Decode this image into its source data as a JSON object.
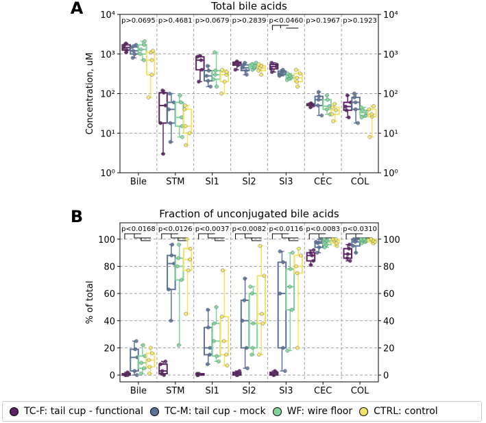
{
  "legend": [
    {
      "key": "TC-F",
      "label": "TC-F: tail cup - functional",
      "color": "#5b2164"
    },
    {
      "key": "TC-M",
      "label": "TC-M: tail cup - mock",
      "color": "#5b7397"
    },
    {
      "key": "WF",
      "label": "WF: wire floor",
      "color": "#7fd49a"
    },
    {
      "key": "CTRL",
      "label": "CTRL: control",
      "color": "#f2e368"
    }
  ],
  "chart_data": [
    {
      "panel": "A",
      "type": "box",
      "title": "Total bile acids",
      "ylabel": "Concentration, uM",
      "yscale": "log",
      "ylim": [
        1,
        10000
      ],
      "ytick_labels": [
        "10⁰",
        "10¹",
        "10²",
        "10³",
        "10⁴"
      ],
      "grid": true,
      "categories": [
        "Bile",
        "STM",
        "SI1",
        "SI2",
        "SI3",
        "CEC",
        "COL"
      ],
      "pvalues": [
        "p>0.0695",
        "p>0.4681",
        "p>0.0679",
        "p>0.2839",
        "p<0.0460",
        "p>0.1967",
        "p>0.1923"
      ],
      "series": [
        {
          "name": "TC-F",
          "boxes": [
            {
              "min": 1100,
              "q1": 1250,
              "median": 1450,
              "q3": 1700,
              "max": 1850
            },
            {
              "min": 3,
              "q1": 18,
              "median": 50,
              "q3": 105,
              "max": 120
            },
            {
              "min": 200,
              "q1": 400,
              "median": 700,
              "q3": 850,
              "max": 900
            },
            {
              "min": 400,
              "q1": 520,
              "median": 580,
              "q3": 620,
              "max": 650
            },
            {
              "min": 350,
              "q1": 420,
              "median": 480,
              "q3": 540,
              "max": 600
            },
            {
              "min": 45,
              "q1": 50,
              "median": 53,
              "q3": 55,
              "max": 57
            },
            {
              "min": 25,
              "q1": 38,
              "median": 47,
              "q3": 60,
              "max": 90
            }
          ]
        },
        {
          "name": "TC-M",
          "boxes": [
            {
              "min": 800,
              "q1": 1000,
              "median": 1200,
              "q3": 1500,
              "max": 1700
            },
            {
              "min": 6,
              "q1": 18,
              "median": 40,
              "q3": 60,
              "max": 100
            },
            {
              "min": 150,
              "q1": 210,
              "median": 280,
              "q3": 380,
              "max": 500
            },
            {
              "min": 300,
              "q1": 380,
              "median": 450,
              "q3": 530,
              "max": 600
            },
            {
              "min": 280,
              "q1": 300,
              "median": 330,
              "q3": 370,
              "max": 400
            },
            {
              "min": 28,
              "q1": 50,
              "median": 70,
              "q3": 85,
              "max": 110
            },
            {
              "min": 18,
              "q1": 40,
              "median": 60,
              "q3": 80,
              "max": 100
            }
          ]
        },
        {
          "name": "WF",
          "boxes": [
            {
              "min": 700,
              "q1": 1000,
              "median": 1300,
              "q3": 1700,
              "max": 2100
            },
            {
              "min": 8,
              "q1": 15,
              "median": 25,
              "q3": 60,
              "max": 90
            },
            {
              "min": 150,
              "q1": 230,
              "median": 300,
              "q3": 380,
              "max": 1100
            },
            {
              "min": 400,
              "q1": 440,
              "median": 480,
              "q3": 550,
              "max": 600
            },
            {
              "min": 220,
              "q1": 240,
              "median": 260,
              "q3": 290,
              "max": 320
            },
            {
              "min": 30,
              "q1": 40,
              "median": 48,
              "q3": 70,
              "max": 90
            },
            {
              "min": 25,
              "q1": 28,
              "median": 33,
              "q3": 38,
              "max": 45
            }
          ]
        },
        {
          "name": "CTRL",
          "boxes": [
            {
              "min": 80,
              "q1": 300,
              "median": 700,
              "q3": 1100,
              "max": 1200
            },
            {
              "min": 5,
              "q1": 10,
              "median": 15,
              "q3": 40,
              "max": 50
            },
            {
              "min": 100,
              "q1": 200,
              "median": 300,
              "q3": 350,
              "max": 400
            },
            {
              "min": 300,
              "q1": 380,
              "median": 440,
              "q3": 500,
              "max": 550
            },
            {
              "min": 150,
              "q1": 200,
              "median": 250,
              "q3": 320,
              "max": 400
            },
            {
              "min": 20,
              "q1": 30,
              "median": 38,
              "q3": 45,
              "max": 55
            },
            {
              "min": 8,
              "q1": 26,
              "median": 30,
              "q3": 40,
              "max": 48
            }
          ]
        }
      ]
    },
    {
      "panel": "B",
      "type": "box",
      "title": "Fraction of unconjugated bile acids",
      "ylabel": "% of total",
      "yscale": "linear",
      "ylim": [
        -5,
        112
      ],
      "ytick_labels": [
        "0",
        "20",
        "40",
        "60",
        "80",
        "100"
      ],
      "grid": true,
      "categories": [
        "Bile",
        "STM",
        "SI1",
        "SI2",
        "SI3",
        "CEC",
        "COL"
      ],
      "pvalues": [
        "p<0.0168",
        "p<0.0126",
        "p<0.0037",
        "p<0.0082",
        "p<0.0116",
        "p<0.0083",
        "p<0.0310"
      ],
      "series": [
        {
          "name": "TC-F",
          "boxes": [
            {
              "min": 0,
              "q1": 0,
              "median": 0,
              "q3": 1,
              "max": 2
            },
            {
              "min": 0,
              "q1": 1,
              "median": 3,
              "q3": 8,
              "max": 10
            },
            {
              "min": 0,
              "q1": 0,
              "median": 0,
              "q3": 1,
              "max": 1
            },
            {
              "min": 0,
              "q1": 0,
              "median": 1,
              "q3": 2,
              "max": 3
            },
            {
              "min": 0,
              "q1": 0,
              "median": 1,
              "q3": 2,
              "max": 3
            },
            {
              "min": 81,
              "q1": 84,
              "median": 88,
              "q3": 90,
              "max": 92
            },
            {
              "min": 84,
              "q1": 86,
              "median": 89,
              "q3": 93,
              "max": 96
            }
          ]
        },
        {
          "name": "TC-M",
          "boxes": [
            {
              "min": 0,
              "q1": 3,
              "median": 13,
              "q3": 19,
              "max": 25
            },
            {
              "min": 40,
              "q1": 63,
              "median": 82,
              "q3": 88,
              "max": 96
            },
            {
              "min": 8,
              "q1": 15,
              "median": 20,
              "q3": 35,
              "max": 48
            },
            {
              "min": 5,
              "q1": 20,
              "median": 40,
              "q3": 55,
              "max": 71
            },
            {
              "min": 3,
              "q1": 20,
              "median": 60,
              "q3": 83,
              "max": 91
            },
            {
              "min": 90,
              "q1": 94,
              "median": 97,
              "q3": 98,
              "max": 100
            },
            {
              "min": 90,
              "q1": 95,
              "median": 98,
              "q3": 100,
              "max": 100
            }
          ]
        },
        {
          "name": "WF",
          "boxes": [
            {
              "min": 1,
              "q1": 5,
              "median": 9,
              "q3": 14,
              "max": 22
            },
            {
              "min": 22,
              "q1": 70,
              "median": 80,
              "q3": 86,
              "max": 96
            },
            {
              "min": 10,
              "q1": 14,
              "median": 25,
              "q3": 38,
              "max": 50
            },
            {
              "min": 15,
              "q1": 20,
              "median": 38,
              "q3": 60,
              "max": 65
            },
            {
              "min": 18,
              "q1": 48,
              "median": 65,
              "q3": 78,
              "max": 90
            },
            {
              "min": 94,
              "q1": 96,
              "median": 98,
              "q3": 99,
              "max": 100
            },
            {
              "min": 97,
              "q1": 98,
              "median": 99,
              "q3": 100,
              "max": 100
            }
          ]
        },
        {
          "name": "CTRL",
          "boxes": [
            {
              "min": 1,
              "q1": 6,
              "median": 11,
              "q3": 16,
              "max": 20
            },
            {
              "min": 45,
              "q1": 77,
              "median": 85,
              "q3": 93,
              "max": 100
            },
            {
              "min": 7,
              "q1": 15,
              "median": 25,
              "q3": 43,
              "max": 77
            },
            {
              "min": 15,
              "q1": 38,
              "median": 45,
              "q3": 73,
              "max": 95
            },
            {
              "min": 20,
              "q1": 75,
              "median": 80,
              "q3": 88,
              "max": 93
            },
            {
              "min": 95,
              "q1": 97,
              "median": 99,
              "q3": 100,
              "max": 100
            },
            {
              "min": 97,
              "q1": 98,
              "median": 99,
              "q3": 100,
              "max": 100
            }
          ]
        }
      ]
    }
  ]
}
